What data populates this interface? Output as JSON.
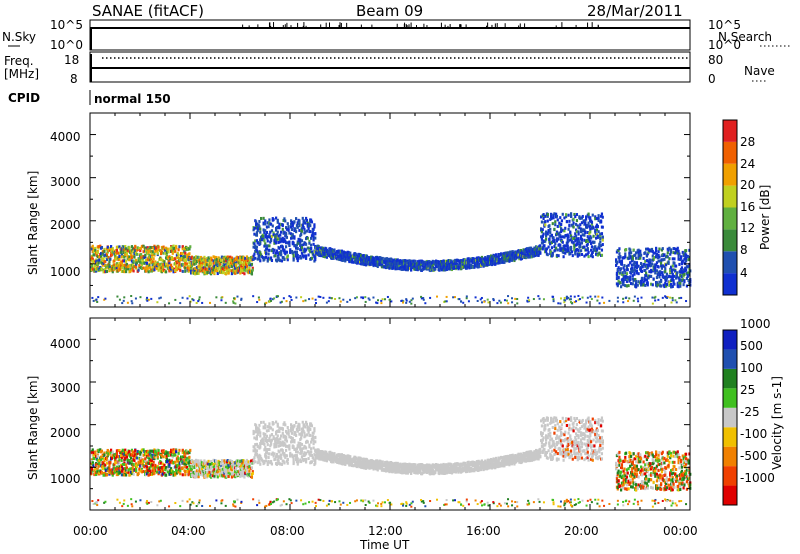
{
  "header": {
    "station": "SANAE (fitACF)",
    "beam": "Beam 09",
    "date": "28/Mar/2011"
  },
  "noise_panel": {
    "left_label": "N.Sky",
    "right_label": "N.Search",
    "tick_top": "10^5",
    "tick_bottom": "10^0"
  },
  "freq_panel": {
    "left_label_1": "Freq.",
    "left_label_2": "[MHz]",
    "right_label": "Nave",
    "left_ticks": [
      "18",
      "8"
    ],
    "right_ticks": [
      "80",
      "0"
    ]
  },
  "cpid_panel": {
    "label": "CPID",
    "mode": "normal 150"
  },
  "colors": {
    "power": [
      "#1030d0",
      "#2050b0",
      "#3a8a3a",
      "#60b040",
      "#c0d020",
      "#f0a000",
      "#f06000",
      "#e02020"
    ],
    "velocity": [
      "#e00000",
      "#f04000",
      "#f08000",
      "#f0c000",
      "#c8c8c8",
      "#40c020",
      "#208020",
      "#2050b0",
      "#1020c0"
    ]
  },
  "chart_data": [
    {
      "type": "heatmap",
      "name": "power",
      "ylabel": "Slant Range [km]",
      "yticks": [
        "1000",
        "2000",
        "3000",
        "4000"
      ],
      "ylim": [
        0,
        4500
      ],
      "colorbar_label": "Power [dB]",
      "colorbar_ticks": [
        "4",
        "8",
        "12",
        "16",
        "20",
        "24",
        "28"
      ],
      "colorbar_range": [
        0,
        32
      ],
      "regions": [
        {
          "t0": 0.0,
          "t1": 4.0,
          "r0": 850,
          "r1": 1450,
          "scale": "mixed_power"
        },
        {
          "t0": 4.0,
          "t1": 6.5,
          "r0": 800,
          "r1": 1200,
          "scale": "mixed_power"
        },
        {
          "t0": 6.5,
          "t1": 9.0,
          "r0": 1100,
          "r1": 2100,
          "scale": "low_power"
        },
        {
          "t0": 9.0,
          "t1": 18.0,
          "r0": 900,
          "r1": 1350,
          "scale": "low_power"
        },
        {
          "t0": 18.0,
          "t1": 20.5,
          "r0": 1200,
          "r1": 2200,
          "scale": "low_power"
        },
        {
          "t0": 21.0,
          "t1": 24.0,
          "r0": 500,
          "r1": 1400,
          "scale": "low_power"
        }
      ]
    },
    {
      "type": "heatmap",
      "name": "velocity",
      "ylabel": "Slant Range [km]",
      "yticks": [
        "1000",
        "2000",
        "3000",
        "4000"
      ],
      "ylim": [
        0,
        4500
      ],
      "xlabel": "Time UT",
      "xticks": [
        "00:00",
        "04:00",
        "08:00",
        "12:00",
        "16:00",
        "20:00",
        "00:00"
      ],
      "xlim": [
        0,
        24
      ],
      "colorbar_label": "Velocity [m s-1]",
      "colorbar_ticks": [
        "-1000",
        "-500",
        "-100",
        "-25",
        "25",
        "100",
        "500",
        "1000"
      ],
      "colorbar_range": [
        -1500,
        1500
      ]
    }
  ]
}
